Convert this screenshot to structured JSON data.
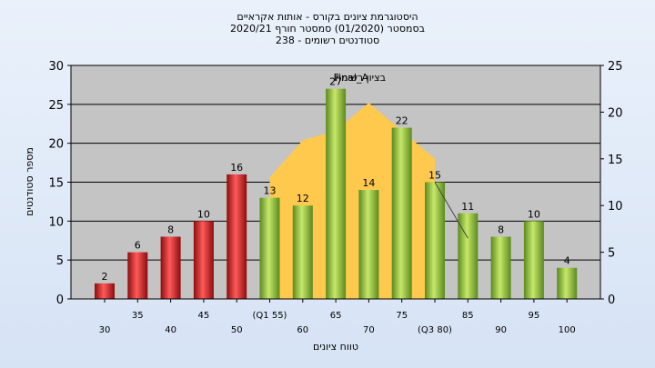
{
  "chart_data": {
    "type": "bar",
    "title_lines": [
      "היסטוגרמת ציונים בקורס - אותות אקראיים",
      "בסמסטר  (01/2020)  סמסטר חורף  2020/21",
      "סטודנטים רשומים - 238"
    ],
    "xlabel": "טווח ציונים",
    "ylabel": "מספר סטודנטים",
    "ylim": [
      0,
      30
    ],
    "y_ticks": [
      "0",
      "5",
      "10",
      "15",
      "20",
      "25",
      "30"
    ],
    "y2lim": [
      0,
      25
    ],
    "y2_ticks": [
      "0",
      "5",
      "10",
      "15",
      "20",
      "25"
    ],
    "grid": true,
    "categories": [
      "30",
      "35",
      "40",
      "45",
      "50",
      "(Q1 55)",
      "60",
      "65",
      "70",
      "75",
      "(Q3 80)",
      "85",
      "90",
      "95",
      "100"
    ],
    "values": [
      2,
      6,
      8,
      10,
      16,
      13,
      12,
      27,
      14,
      22,
      15,
      11,
      8,
      10,
      4
    ],
    "value_labels": [
      "2",
      "6",
      "8",
      "10",
      "16",
      "13",
      "12",
      "27",
      "14",
      "22",
      "15",
      "11",
      "8",
      "10",
      "4"
    ],
    "fail_threshold": 55,
    "colors": {
      "fail": "#e02020",
      "pass": "#8cbf3a",
      "area": "#ffc94d",
      "plot_bg": "#c4c4c4",
      "grid": "#000000"
    },
    "area_series": {
      "label": "Final_A",
      "label2": "בציון רשימה",
      "x": [
        "55",
        "60",
        "65",
        "70",
        "75",
        "80"
      ],
      "values": [
        13,
        17,
        18,
        21,
        18,
        15
      ]
    },
    "line_series": {
      "x": [
        "80",
        "85"
      ],
      "values": [
        12.5,
        6.5
      ]
    }
  }
}
